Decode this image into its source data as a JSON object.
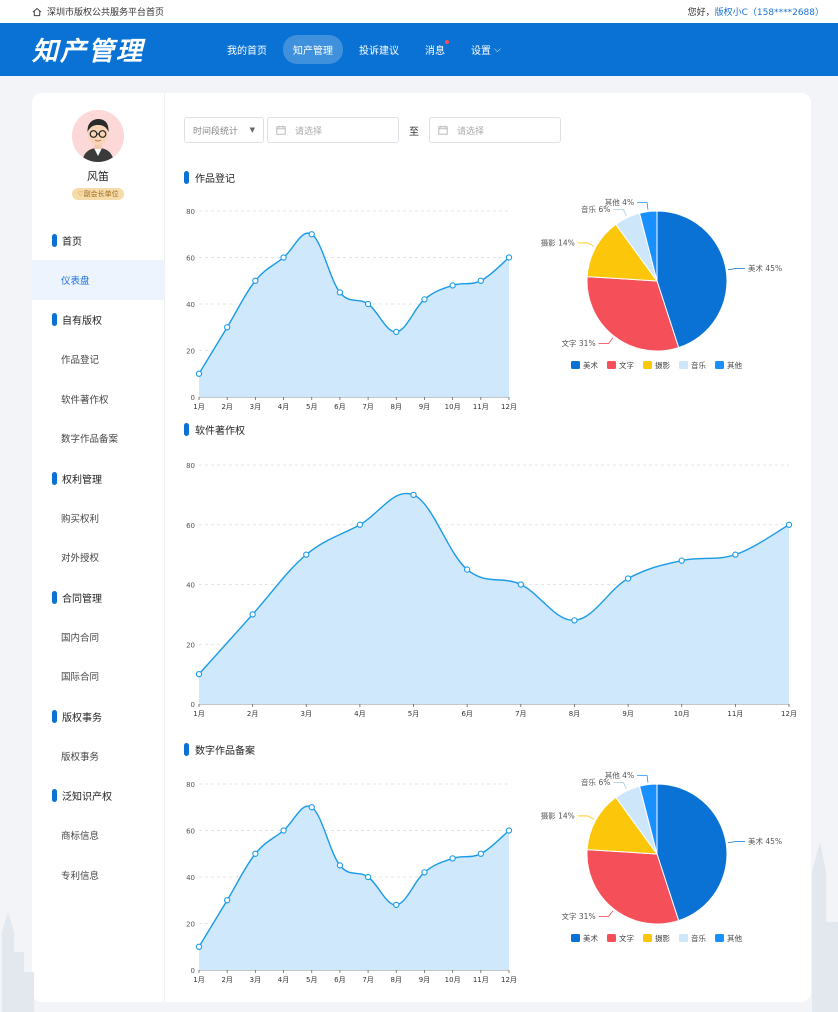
{
  "topbar": {
    "home_text": "深圳市版权公共服务平台首页",
    "greeting": "您好，",
    "user_name": "版权小C（158****2688）"
  },
  "header": {
    "logo": "知产管理",
    "nav": [
      {
        "label": "我的首页",
        "active": false
      },
      {
        "label": "知产管理",
        "active": true
      },
      {
        "label": "投诉建议",
        "active": false
      },
      {
        "label": "消息",
        "active": false,
        "dot": true
      },
      {
        "label": "设置",
        "active": false,
        "dropdown": true
      }
    ]
  },
  "profile": {
    "name": "风笛",
    "badge": "副会长单位"
  },
  "sidebar": {
    "groups": [
      {
        "label": "首页",
        "items": [
          {
            "label": "仪表盘",
            "active": true
          }
        ]
      },
      {
        "label": "自有版权",
        "items": [
          {
            "label": "作品登记"
          },
          {
            "label": "软件著作权"
          },
          {
            "label": "数字作品备案"
          }
        ]
      },
      {
        "label": "权利管理",
        "items": [
          {
            "label": "购买权利"
          },
          {
            "label": "对外授权"
          }
        ]
      },
      {
        "label": "合同管理",
        "items": [
          {
            "label": "国内合同"
          },
          {
            "label": "国际合同"
          }
        ]
      },
      {
        "label": "版权事务",
        "items": [
          {
            "label": "版权事务"
          }
        ]
      },
      {
        "label": "泛知识产权",
        "items": [
          {
            "label": "商标信息"
          },
          {
            "label": "专利信息"
          }
        ]
      }
    ]
  },
  "filters": {
    "period_select": "时间段统计",
    "start_placeholder": "请选择",
    "to": "至",
    "end_placeholder": "请选择"
  },
  "sections": [
    "作品登记",
    "软件著作权",
    "数字作品备案"
  ],
  "colors": {
    "primary": "#0a72d4",
    "area": "#cfe8fb",
    "line": "#1b9be6"
  },
  "chart_data": [
    {
      "type": "area",
      "section": "作品登记",
      "categories": [
        "1月",
        "2月",
        "3月",
        "4月",
        "5月",
        "6月",
        "7月",
        "8月",
        "9月",
        "10月",
        "11月",
        "12月"
      ],
      "values": [
        10,
        30,
        50,
        60,
        70,
        45,
        40,
        28,
        42,
        48,
        50,
        60
      ],
      "ylim": [
        0,
        80
      ],
      "yticks": [
        0,
        20,
        40,
        60,
        80
      ],
      "grid": true
    },
    {
      "type": "pie",
      "section": "作品登记",
      "slices": [
        {
          "label": "美术",
          "value": 45,
          "color": "#0a72d4"
        },
        {
          "label": "文字",
          "value": 31,
          "color": "#f5505a"
        },
        {
          "label": "摄影",
          "value": 14,
          "color": "#fcc70a"
        },
        {
          "label": "音乐",
          "value": 6,
          "color": "#cde6fa"
        },
        {
          "label": "其他",
          "value": 4,
          "color": "#1890ff"
        }
      ],
      "legend": "bottom"
    },
    {
      "type": "area",
      "section": "软件著作权",
      "categories": [
        "1月",
        "2月",
        "3月",
        "4月",
        "5月",
        "6月",
        "7月",
        "8月",
        "9月",
        "10月",
        "11月",
        "12月"
      ],
      "values": [
        10,
        30,
        50,
        60,
        70,
        45,
        40,
        28,
        42,
        48,
        50,
        60
      ],
      "ylim": [
        0,
        80
      ],
      "yticks": [
        0,
        20,
        40,
        60,
        80
      ],
      "grid": true
    },
    {
      "type": "area",
      "section": "数字作品备案",
      "categories": [
        "1月",
        "2月",
        "3月",
        "4月",
        "5月",
        "6月",
        "7月",
        "8月",
        "9月",
        "10月",
        "11月",
        "12月"
      ],
      "values": [
        10,
        30,
        50,
        60,
        70,
        45,
        40,
        28,
        42,
        48,
        50,
        60
      ],
      "ylim": [
        0,
        80
      ],
      "yticks": [
        0,
        20,
        40,
        60,
        80
      ],
      "grid": true
    },
    {
      "type": "pie",
      "section": "数字作品备案",
      "slices": [
        {
          "label": "美术",
          "value": 45,
          "color": "#0a72d4"
        },
        {
          "label": "文字",
          "value": 31,
          "color": "#f5505a"
        },
        {
          "label": "摄影",
          "value": 14,
          "color": "#fcc70a"
        },
        {
          "label": "音乐",
          "value": 6,
          "color": "#cde6fa"
        },
        {
          "label": "其他",
          "value": 4,
          "color": "#1890ff"
        }
      ],
      "legend": "bottom"
    }
  ]
}
